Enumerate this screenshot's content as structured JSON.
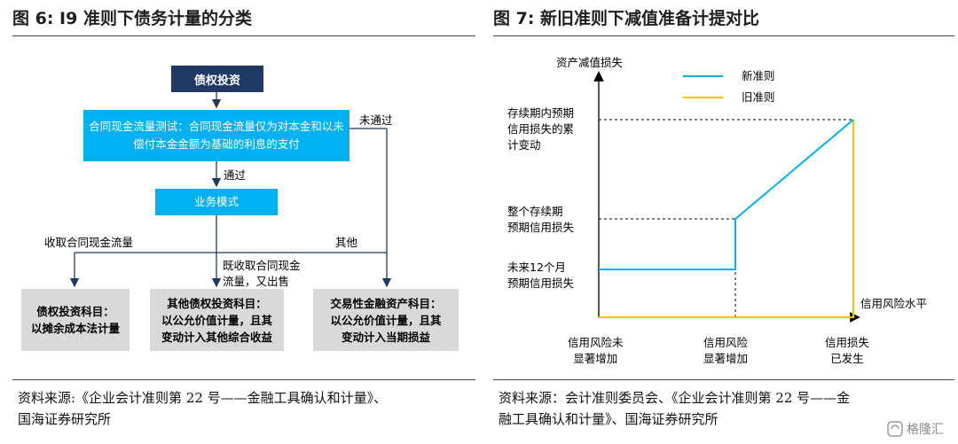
{
  "left": {
    "title": "图 6:  I9 准则下债务计量的分类",
    "boxes": {
      "debt_investment": "债权投资",
      "sppi_test": "合同现金流量测试：合同现金流量仅为对本金和以未偿付本金金额为基础的利息的支付",
      "business_model": "业务模式",
      "amortized_cost": "债权投资科目：\n以摊余成本法计量",
      "fvoci": "其他债权投资科目：\n以公允价值计量，且其\n变动计入其他综合收益",
      "fvtpl": "交易性金融资产科目：\n以公允价值计量，且其\n变动计入当期损益"
    },
    "labels": {
      "fail": "未通过",
      "pass": "通过",
      "collect": "收取合同现金流量",
      "other": "其他",
      "collect_and_sell": "既收取合同现金\n流量，又出售"
    },
    "source": "资料来源:《企业会计准则第 22 号——金融工具确认和计量》、\n国海证券研究所"
  },
  "right": {
    "title": "图 7:  新旧准则下减值准备计提对比",
    "chart_data": {
      "type": "line",
      "ylabel": "资产减值损失",
      "xlabel": "信用风险水平",
      "legend_position": "top-right",
      "series": [
        {
          "name": "新准则",
          "color": "#00b0f0"
        },
        {
          "name": "旧准则",
          "color": "#ffc000"
        }
      ],
      "y_labels": [
        "存续期内预期\n信用损失的累\n计变动",
        "整个存续期\n预期信用损失",
        "未来12个月\n预期信用损失"
      ],
      "x_labels": [
        "信用风险未\n显著增加",
        "信用风险\n显著增加",
        "信用损失\n已发生"
      ]
    },
    "source": "资料来源：会计准则委员会、《企业会计准则第 22 号——金\n融工具确认和计量》、国海证券研究所"
  },
  "watermark": "格隆汇"
}
